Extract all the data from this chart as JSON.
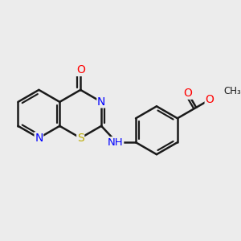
{
  "bg_color": "#ececec",
  "bond_color": "#1a1a1a",
  "bond_width": 1.8,
  "atom_colors": {
    "N": "#0000ff",
    "S": "#bbaa00",
    "O": "#ff0000",
    "C": "#1a1a1a"
  },
  "font_size": 10,
  "fig_bg": "#ececec"
}
